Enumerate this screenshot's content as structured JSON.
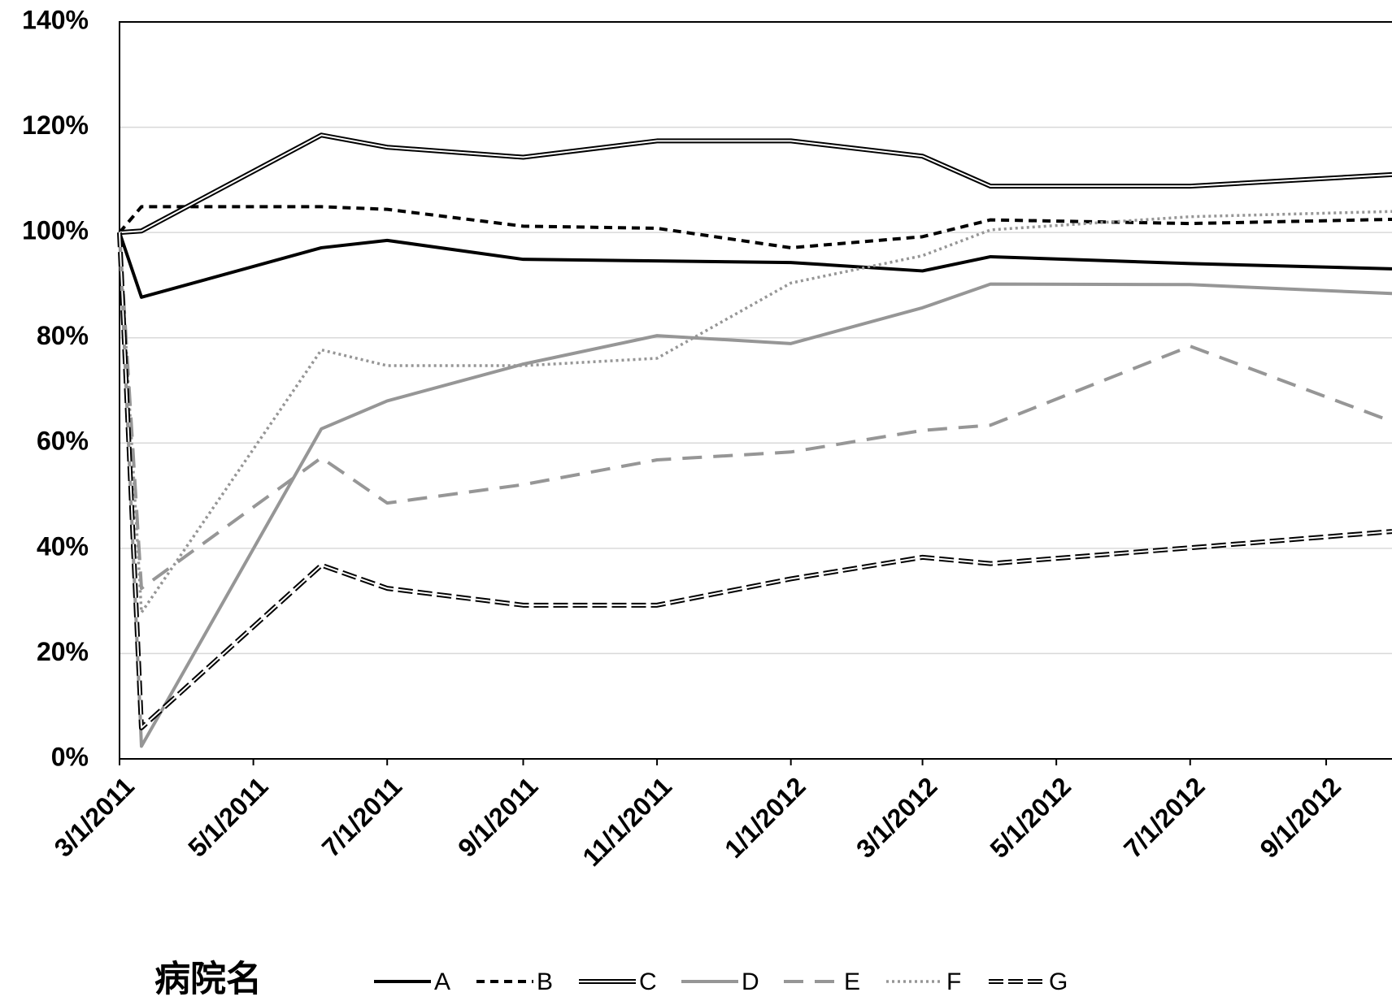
{
  "chart_data": {
    "type": "line",
    "x": [
      "3/1/2011",
      "3/11/2011",
      "6/1/2011",
      "7/1/2011",
      "9/1/2011",
      "11/1/2011",
      "1/1/2012",
      "3/1/2012",
      "4/1/2012",
      "7/1/2012",
      "10/1/2012"
    ],
    "series": [
      {
        "name": "A",
        "color": "#000000",
        "style": "solid",
        "values": [
          100,
          87.7,
          97.1,
          98.5,
          94.9,
          94.6,
          94.3,
          92.7,
          95.4,
          94.1,
          93.1
        ]
      },
      {
        "name": "B",
        "color": "#000000",
        "style": "dashed",
        "values": [
          100,
          104.9,
          104.9,
          104.4,
          101.2,
          100.8,
          97.1,
          99.2,
          102.4,
          101.7,
          102.5
        ]
      },
      {
        "name": "C",
        "color": "#000000",
        "style": "double",
        "values": [
          100,
          100.3,
          118.5,
          116.2,
          114.3,
          117.4,
          117.4,
          114.5,
          108.8,
          108.8,
          111.0
        ]
      },
      {
        "name": "D",
        "color": "#969696",
        "style": "solid",
        "values": [
          100,
          2.4,
          62.7,
          68.0,
          75.0,
          80.4,
          78.9,
          85.7,
          90.2,
          90.1,
          88.4
        ]
      },
      {
        "name": "E",
        "color": "#969696",
        "style": "long-dashed",
        "values": [
          100,
          32.4,
          57.2,
          48.6,
          52.1,
          56.8,
          58.3,
          62.4,
          63.4,
          78.4,
          64.1
        ]
      },
      {
        "name": "F",
        "color": "#969696",
        "style": "dotted",
        "values": [
          100,
          27.8,
          77.7,
          74.7,
          74.7,
          76.1,
          90.4,
          95.6,
          100.5,
          103.0,
          104.0
        ]
      },
      {
        "name": "G",
        "color": "#000000",
        "style": "double-dashed",
        "values": [
          100,
          5.9,
          36.8,
          32.4,
          29.2,
          29.2,
          34.2,
          38.3,
          37.1,
          40.1,
          43.2
        ]
      }
    ],
    "legend_title": "病院名",
    "xlim": [
      "3/1/2011",
      "10/1/2012"
    ],
    "xticks": [
      "3/1/2011",
      "5/1/2011",
      "7/1/2011",
      "9/1/2011",
      "11/1/2011",
      "1/1/2012",
      "3/1/2012",
      "5/1/2012",
      "7/1/2012",
      "9/1/2012"
    ],
    "ylim": [
      0,
      140
    ],
    "yticks": [
      {
        "value": 0,
        "label": "0%"
      },
      {
        "value": 20,
        "label": "20%"
      },
      {
        "value": 40,
        "label": "40%"
      },
      {
        "value": 60,
        "label": "60%"
      },
      {
        "value": 80,
        "label": "80%"
      },
      {
        "value": 100,
        "label": "100%"
      },
      {
        "value": 120,
        "label": "120%"
      },
      {
        "value": 140,
        "label": "140%"
      }
    ],
    "grid": true
  }
}
